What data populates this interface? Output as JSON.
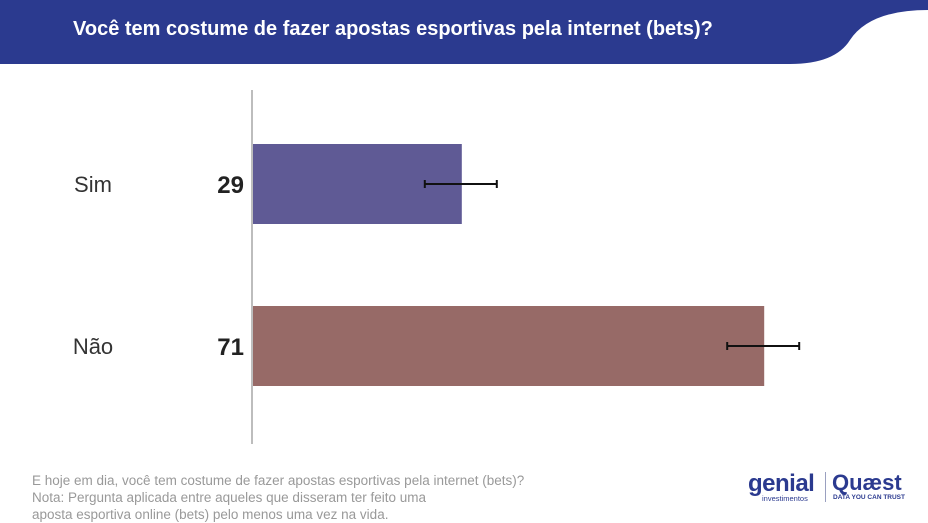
{
  "header": {
    "title": "Você tem costume de fazer apostas esportivas pela internet (bets)?",
    "bg_color": "#2b3a8f"
  },
  "chart_data": {
    "type": "bar",
    "orientation": "horizontal",
    "categories": [
      "Sim",
      "Não"
    ],
    "values": [
      29,
      71
    ],
    "error_margin": [
      5,
      5
    ],
    "colors": [
      "#5f5a95",
      "#976a67"
    ],
    "xlim": [
      0,
      100
    ],
    "grid": false,
    "title": "Você tem costume de fazer apostas esportivas pela internet (bets)?"
  },
  "footer": {
    "line1": "E hoje em dia, você tem costume de fazer apostas esportivas pela internet (bets)?",
    "line2": "Nota: Pergunta aplicada entre aqueles que disseram ter feito uma",
    "line3": "aposta esportiva online (bets) pelo menos uma vez na vida."
  },
  "logos": {
    "genial": "genial",
    "genial_sub": "investimentos",
    "quaest": "Quæst",
    "quaest_sub": "DATA YOU CAN TRUST"
  }
}
